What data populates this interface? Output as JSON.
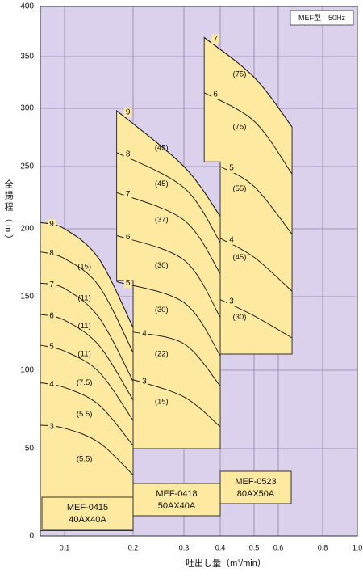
{
  "chart_data": {
    "type": "pump-performance",
    "xlabel": "吐出し量（m³/min）",
    "ylabel": "全揚程（m）",
    "note": "MEF型　50Hz",
    "xlim": [
      0.075,
      1.0
    ],
    "xticks": [
      0.1,
      0.2,
      0.3,
      0.4,
      0.5,
      0.6,
      0.8,
      {
        "value": 1.0,
        "label": "1.0"
      }
    ],
    "ylim": [
      0,
      400
    ],
    "yticks": [
      0,
      50,
      100,
      150,
      200,
      250,
      300,
      350,
      400
    ],
    "grid": true,
    "models": [
      {
        "name": "MEF-0415",
        "size": "40AX40A",
        "color": "#fde9a0",
        "corners": {
          "x": [
            0.2,
            0.075
          ],
          "y": [
            3,
            3
          ]
        },
        "curves": [
          {
            "name": "9",
            "x": [
              0.075,
              0.1,
              0.15,
              0.2
            ],
            "y": [
              205,
              200,
              178,
              129
            ]
          },
          {
            "name": "8",
            "x": [
              0.075,
              0.1,
              0.15,
              0.2
            ],
            "y": [
              183,
              178,
              158,
              112
            ]
          },
          {
            "name": "7",
            "x": [
              0.075,
              0.1,
              0.15,
              0.2
            ],
            "y": [
              160,
              156,
              136,
              93
            ]
          },
          {
            "name": "6",
            "x": [
              0.075,
              0.1,
              0.15,
              0.2
            ],
            "y": [
              138,
              134,
              117,
              81
            ]
          },
          {
            "name": "5",
            "x": [
              0.075,
              0.1,
              0.15,
              0.2
            ],
            "y": [
              117,
              113,
              99,
              68
            ]
          },
          {
            "name": "4",
            "x": [
              0.075,
              0.1,
              0.15,
              0.2
            ],
            "y": [
              92,
              89,
              78,
              52
            ]
          },
          {
            "name": "3",
            "x": [
              0.075,
              0.1,
              0.15,
              0.2
            ],
            "y": [
              65,
              63,
              54,
              35
            ]
          }
        ],
        "power": [
          {
            "label": "(15)",
            "x": 0.129,
            "y": 172
          },
          {
            "label": "(11)",
            "x": 0.129,
            "y": 149
          },
          {
            "label": "(11)",
            "x": 0.129,
            "y": 130
          },
          {
            "label": "(11)",
            "x": 0.129,
            "y": 111
          },
          {
            "label": "(7.5)",
            "x": 0.129,
            "y": 92
          },
          {
            "label": "(5.5)",
            "x": 0.129,
            "y": 72
          },
          {
            "label": "(5.5)",
            "x": 0.129,
            "y": 44
          }
        ]
      },
      {
        "name": "MEF-0418",
        "size": "50AX40A",
        "color": "#fde9a0",
        "corners": {
          "x": [
            0.4,
            0.2,
            0.2,
            0.176
          ],
          "y": [
            50,
            50,
            162,
            162
          ]
        },
        "curves": [
          {
            "name": "9",
            "x": [
              0.176,
              0.3,
              0.4
            ],
            "y": [
              298,
              250,
              210
            ]
          },
          {
            "name": "8",
            "x": [
              0.176,
              0.3,
              0.4
            ],
            "y": [
              262,
              233,
              190
            ]
          },
          {
            "name": "7",
            "x": [
              0.176,
              0.3,
              0.4
            ],
            "y": [
              229,
              207,
              167
            ]
          },
          {
            "name": "6",
            "x": [
              0.176,
              0.3,
              0.4
            ],
            "y": [
              195,
              177,
              136
            ]
          },
          {
            "name": "5",
            "x": [
              0.176,
              0.3,
              0.4
            ],
            "y": [
              161,
              146,
              110
            ]
          },
          {
            "name": "4",
            "x": [
              0.2,
              0.3,
              0.4
            ],
            "y": [
              126,
              118,
              90
            ]
          },
          {
            "name": "3",
            "x": [
              0.2,
              0.3,
              0.4
            ],
            "y": [
              94,
              83,
              64
            ]
          }
        ],
        "power": [
          {
            "label": "(45)",
            "x": 0.256,
            "y": 266
          },
          {
            "label": "(45)",
            "x": 0.256,
            "y": 236
          },
          {
            "label": "(37)",
            "x": 0.256,
            "y": 207
          },
          {
            "label": "(30)",
            "x": 0.256,
            "y": 173
          },
          {
            "label": "(30)",
            "x": 0.256,
            "y": 141
          },
          {
            "label": "(22)",
            "x": 0.256,
            "y": 111
          },
          {
            "label": "(15)",
            "x": 0.256,
            "y": 80
          }
        ]
      },
      {
        "name": "MEF-0523",
        "size": "80AX50A",
        "color": "#fde9a0",
        "corners": {
          "x": [
            0.662,
            0.4,
            0.4,
            0.356
          ],
          "y": [
            111,
            111,
            254,
            254
          ]
        },
        "curves": [
          {
            "name": "7",
            "x": [
              0.356,
              0.5,
              0.662
            ],
            "y": [
              369,
              330,
              284
            ]
          },
          {
            "name": "6",
            "x": [
              0.356,
              0.5,
              0.662
            ],
            "y": [
              315,
              289,
              244
            ]
          },
          {
            "name": "5",
            "x": [
              0.4,
              0.5,
              0.662
            ],
            "y": [
              250,
              234,
              196
            ]
          },
          {
            "name": "4",
            "x": [
              0.4,
              0.5,
              0.662
            ],
            "y": [
              193,
              179,
              154
            ]
          },
          {
            "name": "3",
            "x": [
              0.4,
              0.5,
              0.662
            ],
            "y": [
              148,
              137,
              122
            ]
          }
        ],
        "power": [
          {
            "label": "(75)",
            "x": 0.457,
            "y": 333
          },
          {
            "label": "(75)",
            "x": 0.457,
            "y": 284
          },
          {
            "label": "(55)",
            "x": 0.457,
            "y": 232
          },
          {
            "label": "(45)",
            "x": 0.457,
            "y": 179
          },
          {
            "label": "(30)",
            "x": 0.457,
            "y": 136
          }
        ]
      }
    ]
  }
}
